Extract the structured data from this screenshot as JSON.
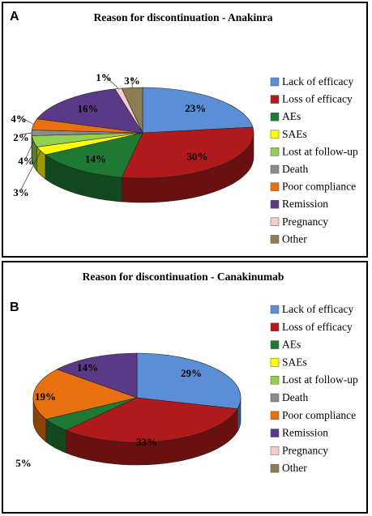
{
  "panels": [
    {
      "letter": "A"
    },
    {
      "letter": "B"
    }
  ],
  "legend_colors": {
    "Lack of efficacy": "#5b8ed6",
    "Loss of efficacy": "#b01a1a",
    "AEs": "#1e7a32",
    "SAEs": "#ffff00",
    "Lost at follow-up": "#92d050",
    "Death": "#8c8c8c",
    "Poor compliance": "#e8700e",
    "Remission": "#5a3a86",
    "Pregnancy": "#f5cccc",
    "Other": "#8e7d52"
  },
  "chart_data": [
    {
      "type": "pie",
      "title": "Reason for discontinuation - Anakinra",
      "legend": [
        "Lack of efficacy",
        "Loss of efficacy",
        "AEs",
        "SAEs",
        "Lost at follow-up",
        "Death",
        "Poor compliance",
        "Remission",
        "Pregnancy",
        "Other"
      ],
      "legend_position": "right",
      "slices": [
        {
          "label": "Lack of efficacy",
          "value": 23,
          "text": "23%"
        },
        {
          "label": "Loss of efficacy",
          "value": 30,
          "text": "30%"
        },
        {
          "label": "AEs",
          "value": 14,
          "text": "14%"
        },
        {
          "label": "SAEs",
          "value": 3,
          "text": "3%"
        },
        {
          "label": "Lost at follow-up",
          "value": 4,
          "text": "4%"
        },
        {
          "label": "Death",
          "value": 2,
          "text": "2%"
        },
        {
          "label": "Poor compliance",
          "value": 4,
          "text": "4%"
        },
        {
          "label": "Remission",
          "value": 16,
          "text": "16%"
        },
        {
          "label": "Pregnancy",
          "value": 1,
          "text": "1%"
        },
        {
          "label": "Other",
          "value": 3,
          "text": "3%"
        }
      ]
    },
    {
      "type": "pie",
      "title": "Reason for discontinuation - Canakinumab",
      "legend": [
        "Lack of efficacy",
        "Loss of efficacy",
        "AEs",
        "SAEs",
        "Lost at follow-up",
        "Death",
        "Poor compliance",
        "Remission",
        "Pregnancy",
        "Other"
      ],
      "legend_position": "right",
      "slices": [
        {
          "label": "Lack of efficacy",
          "value": 29,
          "text": "29%"
        },
        {
          "label": "Loss of efficacy",
          "value": 33,
          "text": "33%"
        },
        {
          "label": "AEs",
          "value": 5,
          "text": "5%"
        },
        {
          "label": "Poor compliance",
          "value": 19,
          "text": "19%"
        },
        {
          "label": "Remission",
          "value": 14,
          "text": "14%"
        }
      ]
    }
  ]
}
